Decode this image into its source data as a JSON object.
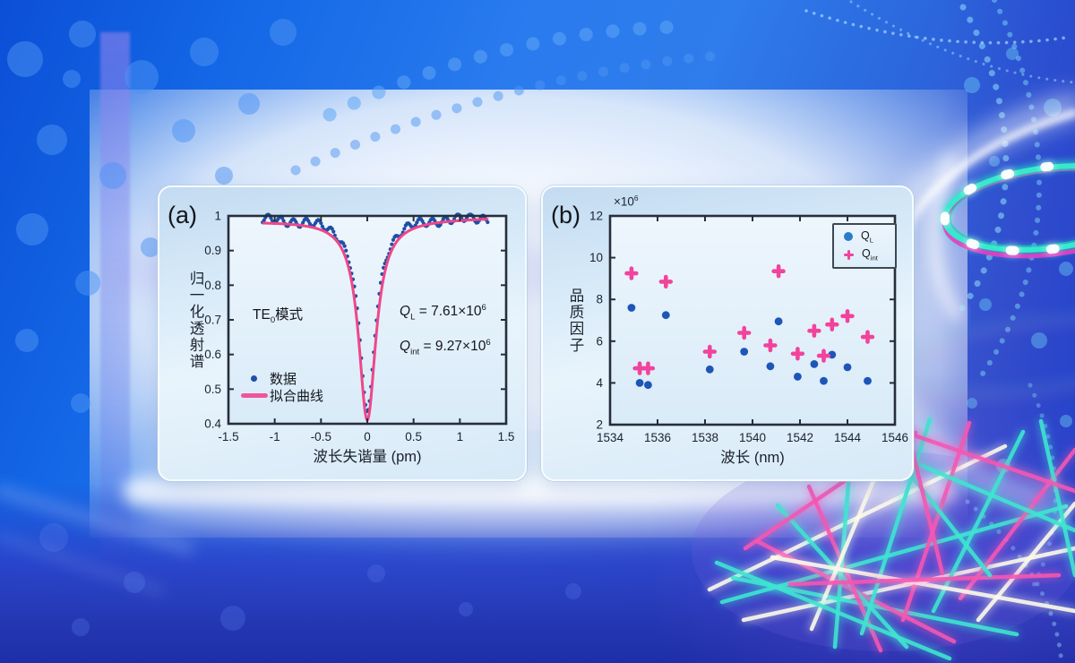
{
  "page": {
    "panel_a_label": "(a)",
    "panel_b_label": "(b)"
  },
  "chart_data": [
    {
      "panel": "(a)",
      "type": "scatter",
      "xlabel": "波长失谐量 (pm)",
      "ylabel": "归一化透射谱",
      "xlim": [
        -1.5,
        1.5
      ],
      "ylim": [
        0.4,
        1
      ],
      "x_ticks": [
        -1.5,
        -1,
        -0.5,
        0,
        0.5,
        1,
        1.5
      ],
      "y_ticks": [
        0.4,
        0.5,
        0.6,
        0.7,
        0.8,
        0.9,
        1
      ],
      "grid": false,
      "legend_position": "lower-left",
      "mode_label": {
        "prefix": "TE",
        "sub": "0",
        "suffix": "模式"
      },
      "q_loaded": {
        "sym": "Q",
        "sub": "L",
        "eq": " = 7.61×10",
        "exp": "6"
      },
      "q_intrinsic": {
        "sym": "Q",
        "sub": "int",
        "eq": " = 9.27×10",
        "exp": "6"
      },
      "series": [
        {
          "name": "数据",
          "kind": "scatter",
          "color": "#1d4fa6",
          "model": {
            "shape": "lorentzian_dip",
            "center_pm": 0,
            "min_transmission": 0.435,
            "hwhm_pm": 0.105,
            "baseline_left": 0.993,
            "baseline_right": 0.998,
            "x_start": -1.13,
            "x_end": 1.3,
            "step": 0.015,
            "ripple": [
              {
                "amp": 0.012,
                "freq": 46,
                "phase": 0.6
              },
              {
                "amp": 0.005,
                "freq": 12,
                "phase": 1.8
              }
            ],
            "ripple_suppress": 0.02
          }
        },
        {
          "name": "拟合曲线",
          "kind": "line",
          "color": "#ee4787",
          "model": {
            "shape": "lorentzian_dip",
            "center_pm": 0,
            "min_transmission": 0.41,
            "hwhm_pm": 0.113,
            "baseline_left": 0.985,
            "baseline_right": 0.995,
            "x_start": -1.12,
            "x_end": 1.3,
            "step": 0.008
          }
        }
      ]
    },
    {
      "panel": "(b)",
      "type": "scatter",
      "xlabel": "波长 (nm)",
      "ylabel": "品质因子",
      "y_offset_label": {
        "times": "×10",
        "exp": "6"
      },
      "y_unit_scale": 1000000,
      "xlim": [
        1534,
        1546
      ],
      "ylim": [
        2,
        12
      ],
      "x_ticks": [
        1534,
        1536,
        1538,
        1540,
        1542,
        1544,
        1546
      ],
      "y_ticks": [
        2,
        4,
        6,
        8,
        10,
        12
      ],
      "grid": false,
      "legend_position": "upper-right",
      "series": [
        {
          "name_sym": "Q",
          "name_sub": "L",
          "kind": "scatter",
          "marker": "circle",
          "color": "#1d55b8",
          "points": [
            [
              1534.9,
              7.6
            ],
            [
              1535.25,
              4.0
            ],
            [
              1535.6,
              3.9
            ],
            [
              1536.35,
              7.25
            ],
            [
              1538.2,
              4.65
            ],
            [
              1539.65,
              5.5
            ],
            [
              1540.75,
              4.8
            ],
            [
              1541.1,
              6.95
            ],
            [
              1541.9,
              4.3
            ],
            [
              1542.6,
              4.9
            ],
            [
              1543.0,
              4.1
            ],
            [
              1543.35,
              5.35
            ],
            [
              1544.0,
              4.75
            ],
            [
              1544.85,
              4.1
            ]
          ]
        },
        {
          "name_sym": "Q",
          "name_sub": "int",
          "kind": "scatter",
          "marker": "plus",
          "color": "#f2439c",
          "points": [
            [
              1534.9,
              9.25
            ],
            [
              1535.25,
              4.7
            ],
            [
              1535.6,
              4.7
            ],
            [
              1536.35,
              8.85
            ],
            [
              1538.2,
              5.5
            ],
            [
              1539.65,
              6.4
            ],
            [
              1540.75,
              5.8
            ],
            [
              1541.1,
              9.35
            ],
            [
              1541.9,
              5.4
            ],
            [
              1542.6,
              6.5
            ],
            [
              1543.0,
              5.3
            ],
            [
              1543.35,
              6.8
            ],
            [
              1544.0,
              7.2
            ],
            [
              1544.85,
              6.2
            ]
          ]
        }
      ]
    }
  ],
  "colors": {
    "axis": "#252e3a",
    "plot_bg_top": "#eef6fd",
    "plot_bg_bottom": "#d9ebf8",
    "data_blue": "#1d4fa6",
    "fit_pink": "#ee4787",
    "ql_blue": "#1d55b8",
    "qint_pink": "#f2439c",
    "neon_cyan": "#3fe5d0",
    "neon_magenta": "#f557b2"
  }
}
